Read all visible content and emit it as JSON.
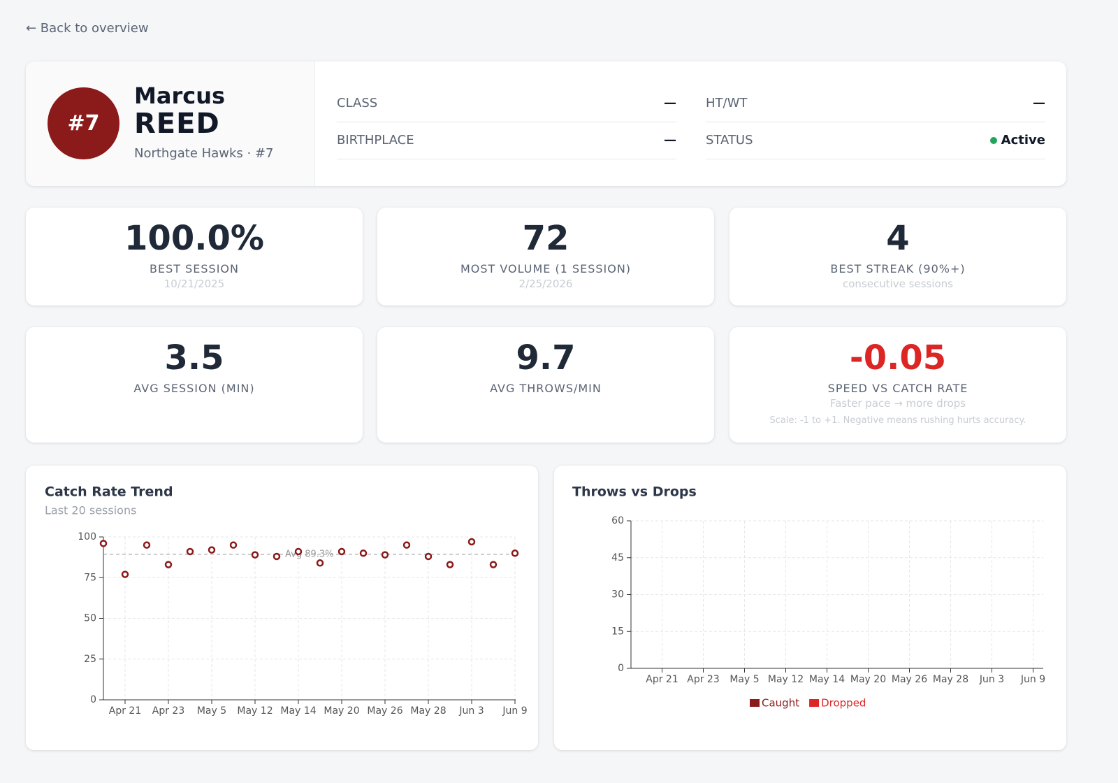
{
  "back_link": "← Back to overview",
  "profile": {
    "badge": "#7",
    "first_name": "Marcus",
    "last_name": "REED",
    "team": "Northgate Hawks · #7"
  },
  "details": [
    {
      "label": "CLASS",
      "value": "—"
    },
    {
      "label": "HT/WT",
      "value": "—"
    },
    {
      "label": "BIRTHPLACE",
      "value": "—"
    },
    {
      "label": "STATUS",
      "value": "Active"
    }
  ],
  "stats": [
    {
      "value": "100.0%",
      "label": "BEST SESSION",
      "notes": [
        "10/21/2025"
      ]
    },
    {
      "value": "72",
      "label": "MOST VOLUME (1 SESSION)",
      "notes": [
        "2/25/2026"
      ]
    },
    {
      "value": "4",
      "label": "BEST STREAK (90%+)",
      "notes": [
        "consecutive sessions"
      ]
    },
    {
      "value": "3.5",
      "label": "AVG SESSION (MIN)",
      "notes": []
    },
    {
      "value": "9.7",
      "label": "AVG THROWS/MIN",
      "notes": []
    },
    {
      "value": "-0.05",
      "label": "SPEED VS CATCH RATE",
      "color": "#dc2626",
      "notes": [
        "Faster pace → more drops",
        "Scale: -1 to +1. Negative means rushing hurts accuracy."
      ]
    }
  ],
  "chart_data": [
    {
      "type": "scatter",
      "title": "Catch Rate Trend",
      "subtitle": "Last 20 sessions",
      "categories": [
        null,
        "Apr 21",
        null,
        "Apr 23",
        null,
        "May 5",
        null,
        "May 12",
        null,
        "May 14",
        null,
        "May 20",
        null,
        "May 26",
        null,
        "May 28",
        null,
        "Jun 3",
        null,
        "Jun 9"
      ],
      "values": [
        96,
        77,
        95,
        83,
        91,
        92,
        95,
        89,
        88,
        91,
        84,
        91,
        90,
        89,
        95,
        88,
        83,
        97,
        83,
        90
      ],
      "color": "#8b1a1a",
      "average": 89.3,
      "average_label": "Avg 89.3%",
      "ylim": [
        0,
        100
      ],
      "yticks": [
        0,
        25,
        50,
        75,
        100
      ],
      "grid": true
    },
    {
      "type": "bar",
      "title": "Throws vs Drops",
      "stacked": true,
      "categories": [
        "Apr 21",
        "Apr 23",
        "May 5",
        "May 12",
        "May 14",
        "May 20",
        "May 26",
        "May 28",
        "Jun 3",
        "Jun 9"
      ],
      "series": [
        {
          "name": "Caught",
          "color": "#8b1a1a",
          "values": [
            null,
            null,
            null,
            null,
            null,
            null,
            null,
            null,
            null,
            null
          ]
        },
        {
          "name": "Dropped",
          "color": "#dc2626",
          "values": [
            null,
            null,
            null,
            null,
            null,
            null,
            null,
            null,
            null,
            null
          ]
        }
      ],
      "ylim": [
        0,
        60
      ],
      "yticks": [
        0,
        15,
        30,
        45,
        60
      ],
      "grid": true,
      "legend": "bottom"
    }
  ]
}
